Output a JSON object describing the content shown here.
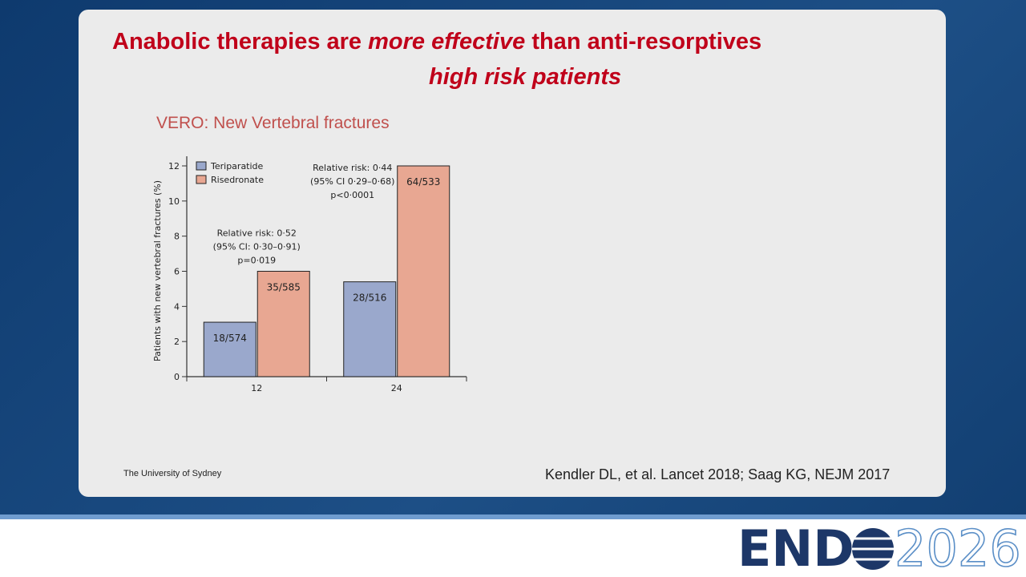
{
  "slide": {
    "title_parts": [
      "Anabolic therapies are",
      "more effective",
      "than anti-resorptives"
    ],
    "title_line2": "high risk patients",
    "footer": "The University of Sydney",
    "citation": "Kendler DL, et al. Lancet 2018; Saag KG, NEJM 2017",
    "logo_left": "END",
    "logo_right": "2026"
  },
  "chart_data": {
    "type": "bar",
    "title": "VERO: New Vertebral fractures",
    "y_label": "Patients with new vertebral fractures (%)",
    "categories": [
      "12",
      "24"
    ],
    "series": [
      {
        "name": "Teriparatide",
        "color": "#9aa8cc",
        "values": [
          3.1,
          5.4
        ],
        "value_labels": [
          "18/574",
          "28/516"
        ]
      },
      {
        "name": "Risedronate",
        "color": "#e8a792",
        "values": [
          6.0,
          12.0
        ],
        "value_labels": [
          "35/585",
          "64/533"
        ]
      }
    ],
    "annotations": [
      [
        "Relative risk: 0·52",
        "(95% CI: 0·30–0·91)",
        "p=0·019"
      ],
      [
        "Relative risk: 0·44",
        "(95% CI 0·29–0·68)",
        "p<0·0001"
      ]
    ],
    "ylim": [
      0,
      12
    ],
    "yticks": [
      0,
      2,
      4,
      6,
      8,
      10,
      12
    ],
    "legend": "top-left"
  }
}
